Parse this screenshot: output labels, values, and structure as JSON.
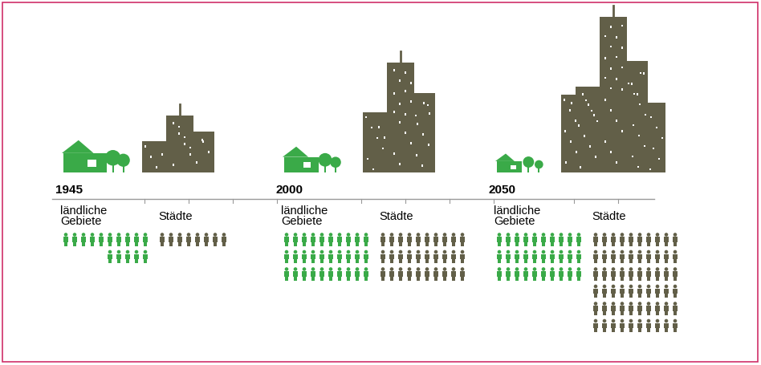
{
  "chart_data": {
    "type": "pictogram",
    "categories": [
      "1945",
      "2000",
      "2050"
    ],
    "series": [
      {
        "name": "ländliche\nGebiete",
        "color": "#3aaa48",
        "values": [
          15,
          30,
          30
        ]
      },
      {
        "name": "Städte",
        "color": "#625f48",
        "values": [
          8,
          30,
          60
        ]
      }
    ]
  }
}
